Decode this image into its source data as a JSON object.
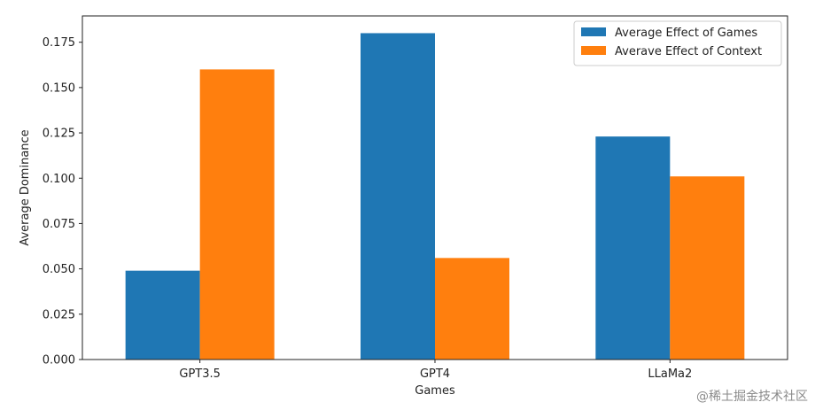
{
  "chart_data": {
    "type": "bar",
    "categories": [
      "GPT3.5",
      "GPT4",
      "LLaMa2"
    ],
    "series": [
      {
        "name": "Average Effect of Games",
        "values": [
          0.049,
          0.18,
          0.123
        ],
        "color": "#1f77b4"
      },
      {
        "name": "Averave Effect of Context",
        "values": [
          0.16,
          0.056,
          0.101
        ],
        "color": "#ff7f0e"
      }
    ],
    "title": "",
    "xlabel": "Games",
    "ylabel": "Average Dominance",
    "ylim": [
      0,
      0.1895
    ],
    "yticks": [
      "0.000",
      "0.025",
      "0.050",
      "0.075",
      "0.100",
      "0.125",
      "0.150",
      "0.175"
    ],
    "grid": false,
    "legend_position": "top-right"
  },
  "watermark": "@稀土掘金技术社区"
}
